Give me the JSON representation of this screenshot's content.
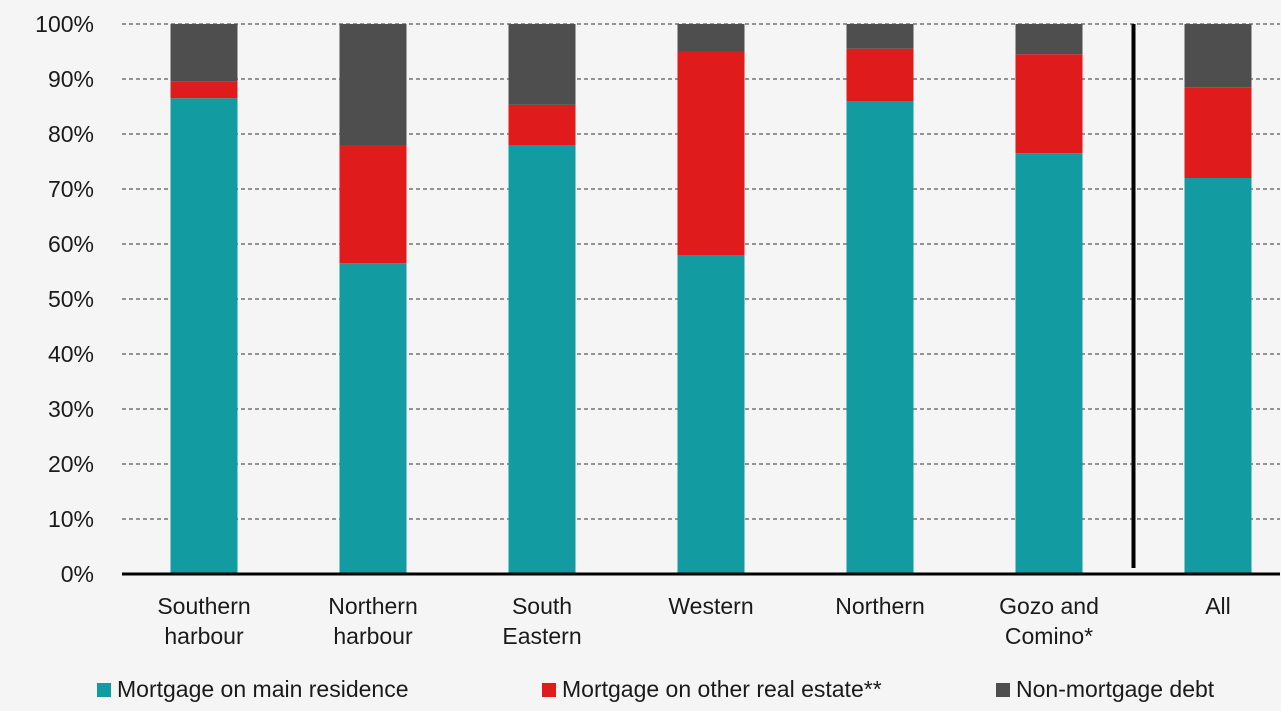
{
  "chart_data": {
    "type": "bar",
    "stacked": true,
    "title": "",
    "xlabel": "",
    "ylabel": "",
    "ylim": [
      0,
      100
    ],
    "y_ticks": [
      "0%",
      "10%",
      "20%",
      "30%",
      "40%",
      "50%",
      "60%",
      "70%",
      "80%",
      "90%",
      "100%"
    ],
    "grid": true,
    "legend_position": "bottom",
    "categories": [
      [
        "Southern",
        "harbour"
      ],
      [
        "Northern",
        "harbour"
      ],
      [
        "South",
        "Eastern"
      ],
      [
        "Western"
      ],
      [
        "Northern"
      ],
      [
        "Gozo and",
        "Comino*"
      ],
      [
        "All"
      ]
    ],
    "separator_before_category_index": 6,
    "series": [
      {
        "name": "Mortgage on main residence",
        "color": "#129ca2",
        "values": [
          86.5,
          56.5,
          78.0,
          58.0,
          86.0,
          76.5,
          72.0
        ]
      },
      {
        "name": "Mortgage on other real estate**",
        "color": "#e01b1b",
        "values": [
          3.0,
          21.5,
          7.3,
          37.0,
          9.5,
          18.0,
          16.5
        ]
      },
      {
        "name": "Non-mortgage debt",
        "color": "#4e4e4e",
        "values": [
          10.5,
          22.0,
          14.7,
          5.0,
          4.5,
          5.5,
          11.5
        ]
      }
    ]
  }
}
